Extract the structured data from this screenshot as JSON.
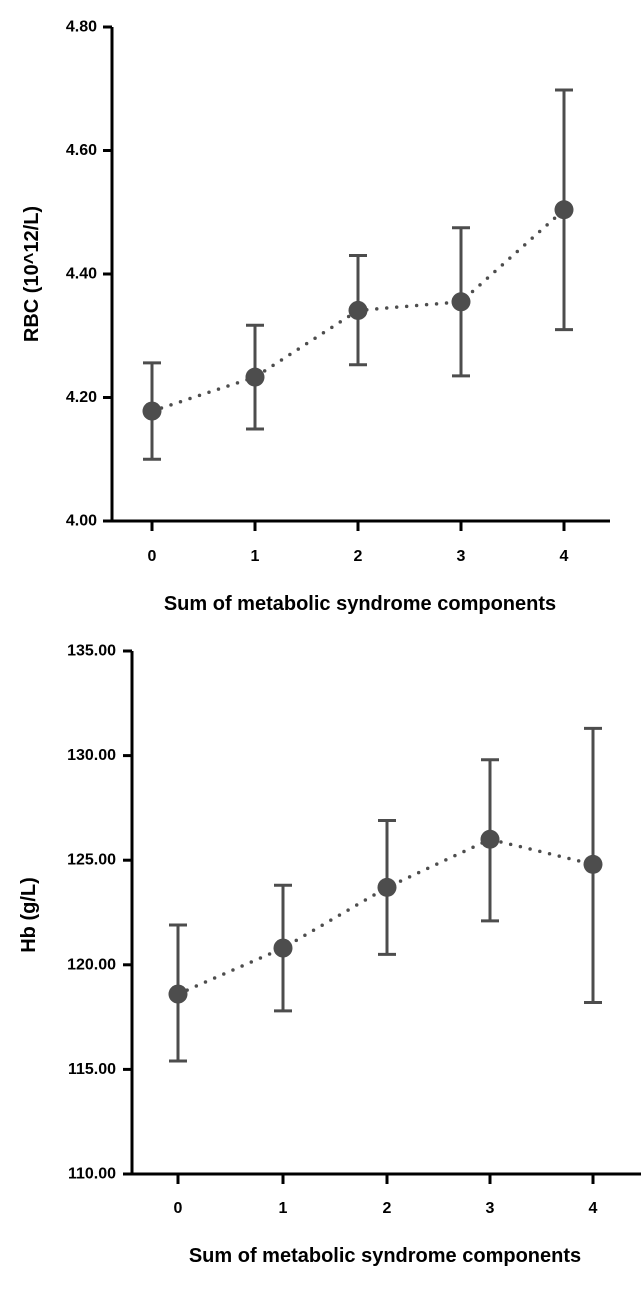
{
  "colors": {
    "axis": "#000000",
    "series": "#4d4d4d",
    "background": "#ffffff"
  },
  "chart_data": [
    {
      "type": "line",
      "style": "dotted line with filled circle markers and error bars",
      "title": "",
      "xlabel": "Sum of metabolic syndrome components",
      "ylabel": "RBC (10^12/L)",
      "x": [
        0,
        1,
        2,
        3,
        4
      ],
      "x_tick_labels": [
        "0",
        "1",
        "2",
        "3",
        "4"
      ],
      "ylim": [
        4.0,
        4.8
      ],
      "y_ticks": [
        4.0,
        4.2,
        4.4,
        4.6,
        4.8
      ],
      "y_tick_labels": [
        "4.00",
        "4.20",
        "4.40",
        "4.60",
        "4.80"
      ],
      "series": [
        {
          "values": [
            4.178,
            4.233,
            4.341,
            4.355,
            4.504
          ],
          "error_low": [
            4.1,
            4.149,
            4.253,
            4.235,
            4.31
          ],
          "error_high": [
            4.256,
            4.317,
            4.43,
            4.475,
            4.698
          ]
        }
      ],
      "grid": false,
      "legend": "none"
    },
    {
      "type": "line",
      "style": "dotted line with filled circle markers and error bars",
      "title": "",
      "xlabel": "Sum of metabolic syndrome components",
      "ylabel": "Hb (g/L)",
      "x": [
        0,
        1,
        2,
        3,
        4
      ],
      "x_tick_labels": [
        "0",
        "1",
        "2",
        "3",
        "4"
      ],
      "ylim": [
        110,
        135
      ],
      "y_ticks": [
        110,
        115,
        120,
        125,
        130,
        135
      ],
      "y_tick_labels": [
        "110.00",
        "115.00",
        "120.00",
        "125.00",
        "130.00",
        "135.00"
      ],
      "series": [
        {
          "values": [
            118.6,
            120.8,
            123.7,
            126.0,
            124.8
          ],
          "error_low": [
            115.4,
            117.8,
            120.5,
            122.1,
            118.2
          ],
          "error_high": [
            121.9,
            123.8,
            126.9,
            129.8,
            131.3
          ]
        }
      ],
      "grid": false,
      "legend": "none"
    }
  ]
}
